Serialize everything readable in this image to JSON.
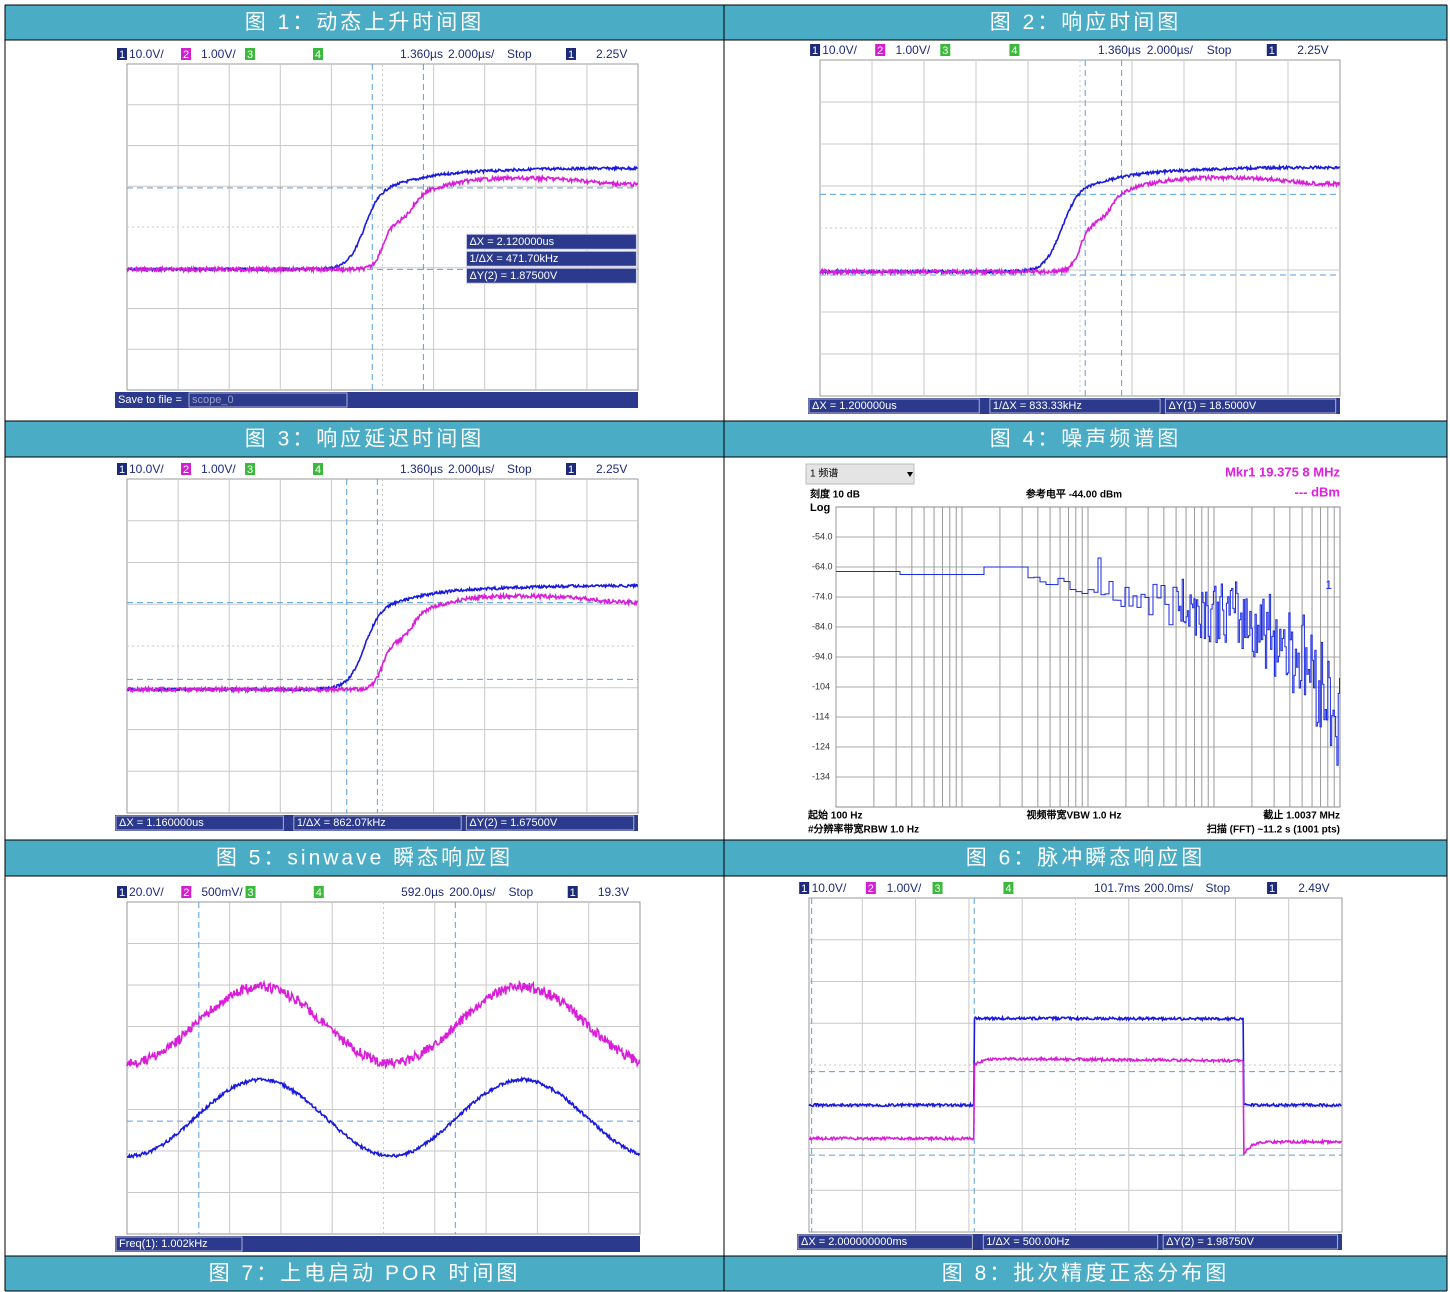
{
  "captions": [
    "图 1：动态上升时间图",
    "图 2：响应时间图",
    "图 3：响应延迟时间图",
    "图 4：噪声频谱图",
    "图 5：sinwave 瞬态响应图",
    "图 6：脉冲瞬态响应图",
    "图 7：上电启动 POR 时间图",
    "图 8：批次精度正态分布图"
  ],
  "figures": [
    {
      "header": [
        "1",
        "10.0V/",
        "2",
        "1.00V/",
        "3",
        "4",
        "1.360µs",
        "2.000µs/",
        "Stop",
        "1",
        "2.25V"
      ],
      "cursor": [
        "ΔX = 2.120000us",
        "1/ΔX = 471.70kHz",
        "ΔY(2) = 1.87500V"
      ],
      "footer": [
        "Save to file = ",
        "scope_0"
      ]
    },
    {
      "header": [
        "1",
        "10.0V/",
        "2",
        "1.00V/",
        "3",
        "4",
        "1.360µs",
        "2.000µs/",
        "Stop",
        "1",
        "2.25V"
      ],
      "footer": [
        "ΔX = 1.200000us",
        "1/ΔX = 833.33kHz",
        "ΔY(1) = 18.5000V"
      ]
    },
    {
      "header": [
        "1",
        "10.0V/",
        "2",
        "1.00V/",
        "3",
        "4",
        "1.360µs",
        "2.000µs/",
        "Stop",
        "1",
        "2.25V"
      ],
      "footer": [
        "ΔX = 1.160000us",
        "1/ΔX = 862.07kHz",
        "ΔY(2) = 1.67500V"
      ]
    },
    {
      "menu": "1 频谱",
      "marker": "Mkr1  19.375 8 MHz",
      "scale": "刻度 10 dB",
      "ref_level": "参考电平 -44.00 dBm",
      "marker_unit": "--- dBm",
      "log": "Log",
      "y_labels": [
        "-54.0",
        "-64.0",
        "-74.0",
        "-84.0",
        "-94.0",
        "-104",
        "-114",
        "-124",
        "-134"
      ],
      "trace": "1",
      "start": "起始 100 Hz",
      "vbw": "视频带宽VBW 1.0 Hz",
      "stop": "截止 1.0037 MHz",
      "rbw": "#分辨率带宽RBW 1.0 Hz",
      "sweep": "扫描 (FFT) ~11.2 s (1001 pts)"
    },
    {
      "header": [
        "1",
        "20.0V/",
        "2",
        "500mV/",
        "3",
        "4",
        "592.0µs",
        "200.0µs/",
        "Stop",
        "1",
        "19.3V"
      ],
      "footer": [
        "Freq(1): 1.002kHz"
      ]
    },
    {
      "header": [
        "1",
        "10.0V/",
        "2",
        "1.00V/",
        "3",
        "4",
        "101.7ms",
        "200.0ms/",
        "Stop",
        "1",
        "2.49V"
      ],
      "footer": [
        "ΔX = 2.000000000ms",
        "1/ΔX = 500.00Hz",
        "ΔY(2) = 1.98750V"
      ]
    }
  ]
}
